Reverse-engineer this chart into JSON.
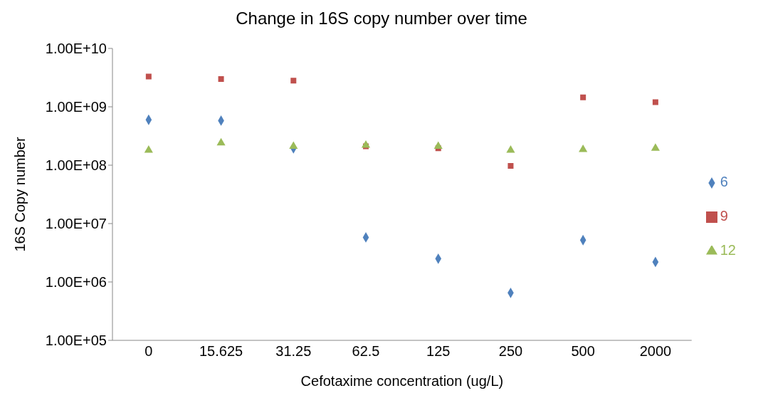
{
  "chart_data": {
    "type": "scatter",
    "title": "Change in 16S copy number over time",
    "xlabel": "Cefotaxime concentration (ug/L)",
    "ylabel": "16S Copy number",
    "categories": [
      "0",
      "15.625",
      "31.25",
      "62.5",
      "125",
      "250",
      "500",
      "2000"
    ],
    "log": "y",
    "ylim": [
      100000,
      10000000000
    ],
    "yticks": [
      {
        "value": 100000,
        "label": "1.00E+05"
      },
      {
        "value": 1000000,
        "label": "1.00E+06"
      },
      {
        "value": 10000000,
        "label": "1.00E+07"
      },
      {
        "value": 100000000,
        "label": "1.00E+08"
      },
      {
        "value": 1000000000,
        "label": "1.00E+09"
      },
      {
        "value": 10000000000,
        "label": "1.00E+10"
      }
    ],
    "grid": false,
    "legend": "right",
    "series": [
      {
        "name": "6",
        "color": "#4f81bd",
        "marker": "diamond",
        "values": [
          600000000,
          580000000,
          195000000,
          5800000,
          2500000,
          650000,
          5200000,
          2200000
        ]
      },
      {
        "name": "9",
        "color": "#c0504d",
        "marker": "square",
        "values": [
          3300000000,
          3000000000,
          2800000000,
          210000000,
          195000000,
          97000000,
          1450000000,
          1200000000
        ]
      },
      {
        "name": "12",
        "color": "#9bbb59",
        "marker": "triangle",
        "values": [
          180000000,
          240000000,
          210000000,
          220000000,
          210000000,
          180000000,
          185000000,
          195000000
        ]
      }
    ]
  }
}
